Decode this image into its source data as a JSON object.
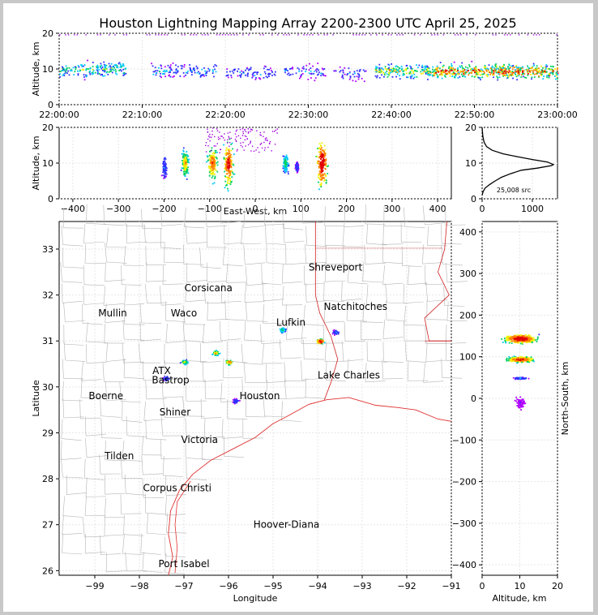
{
  "title": "Houston Lightning Mapping Array 2200-2300 UTC April 25, 2025",
  "colors": {
    "map_coast": "#e03030",
    "county_lines": "#b4b4b4",
    "state_lines": "#d02020",
    "grid": "#e6e6e6"
  },
  "chart_data": [
    {
      "id": "time-altitude",
      "type": "scatter",
      "xlabel": "",
      "ylabel": "Altitude, km",
      "xlim": [
        "22:00:00",
        "23:00:00"
      ],
      "ylim": [
        0,
        20
      ],
      "x_ticks": [
        "22:00:00",
        "22:10:00",
        "22:20:00",
        "22:30:00",
        "22:40:00",
        "22:50:00",
        "23:00:00"
      ],
      "y_ticks": [
        "0",
        "10",
        "20"
      ],
      "bursts": [
        {
          "t_start_min": 0,
          "t_end_min": 8,
          "alt_km": 10,
          "intensity": 0.6
        },
        {
          "t_start_min": 11,
          "t_end_min": 19,
          "alt_km": 9.5,
          "intensity": 0.4
        },
        {
          "t_start_min": 20,
          "t_end_min": 26,
          "alt_km": 9,
          "intensity": 0.35
        },
        {
          "t_start_min": 27,
          "t_end_min": 32,
          "alt_km": 9.5,
          "intensity": 0.35
        },
        {
          "t_start_min": 33,
          "t_end_min": 37,
          "alt_km": 9,
          "intensity": 0.3
        },
        {
          "t_start_min": 38,
          "t_end_min": 45,
          "alt_km": 9.5,
          "intensity": 0.75
        },
        {
          "t_start_min": 45,
          "t_end_min": 60,
          "alt_km": 9.5,
          "intensity": 1.0
        }
      ]
    },
    {
      "id": "east-west-altitude",
      "type": "scatter",
      "xlabel": "East-West, km",
      "ylabel": "Altitude, km",
      "xlim": [
        -430,
        430
      ],
      "ylim": [
        0,
        20
      ],
      "x_ticks": [
        "−400",
        "−300",
        "−200",
        "−100",
        "0",
        "100",
        "200",
        "300",
        "400"
      ],
      "y_ticks": [
        "0",
        "10",
        "20"
      ],
      "clusters": [
        {
          "x_km": -200,
          "alt_km": 9,
          "width_km": 8,
          "height_km": 6,
          "intensity": 0.3
        },
        {
          "x_km": -155,
          "alt_km": 10,
          "width_km": 12,
          "height_km": 8,
          "intensity": 0.7
        },
        {
          "x_km": -95,
          "alt_km": 10,
          "width_km": 18,
          "height_km": 10,
          "intensity": 0.8
        },
        {
          "x_km": -60,
          "alt_km": 10,
          "width_km": 16,
          "height_km": 14,
          "intensity": 0.9
        },
        {
          "x_km": 65,
          "alt_km": 10,
          "width_km": 10,
          "height_km": 6,
          "intensity": 0.5
        },
        {
          "x_km": 90,
          "alt_km": 9,
          "width_km": 6,
          "height_km": 3,
          "intensity": 0.25
        },
        {
          "x_km": 145,
          "alt_km": 10,
          "width_km": 18,
          "height_km": 14,
          "intensity": 1.0
        }
      ]
    },
    {
      "id": "altitude-histogram",
      "type": "line",
      "xlim": [
        0,
        1500
      ],
      "ylim": [
        0,
        20
      ],
      "x_ticks": [
        "0",
        "1000"
      ],
      "y_ticks": [
        "0",
        "10",
        "20"
      ],
      "annotation": "25,008 src",
      "points": [
        [
          0,
          1
        ],
        [
          20,
          2
        ],
        [
          60,
          3
        ],
        [
          150,
          4
        ],
        [
          260,
          5
        ],
        [
          380,
          6
        ],
        [
          560,
          7
        ],
        [
          780,
          8
        ],
        [
          1100,
          8.6
        ],
        [
          1380,
          9.3
        ],
        [
          1420,
          9.6
        ],
        [
          1300,
          10.3
        ],
        [
          1000,
          11
        ],
        [
          700,
          11.8
        ],
        [
          420,
          12.6
        ],
        [
          200,
          13.6
        ],
        [
          90,
          14.6
        ],
        [
          40,
          15.8
        ],
        [
          15,
          17.5
        ],
        [
          5,
          19
        ],
        [
          0,
          20
        ]
      ]
    },
    {
      "id": "lat-lon-map",
      "type": "scatter",
      "xlabel": "Longitude",
      "ylabel": "Latitude",
      "xlim": [
        -99.8,
        -91
      ],
      "ylim": [
        25.9,
        33.6
      ],
      "x_ticks": [
        "−99",
        "−98",
        "−97",
        "−96",
        "−95",
        "−94",
        "−93",
        "−92",
        "−91"
      ],
      "y_ticks": [
        "26",
        "27",
        "28",
        "29",
        "30",
        "31",
        "32",
        "33"
      ],
      "cities": [
        {
          "name": "Shreveport",
          "lon": -93.6,
          "lat": 32.6,
          "color": "#000000"
        },
        {
          "name": "Corsicana",
          "lon": -96.45,
          "lat": 32.15,
          "color": "#000000"
        },
        {
          "name": "Mullin",
          "lon": -98.6,
          "lat": 31.6,
          "color": "#f08c3c"
        },
        {
          "name": "Waco",
          "lon": -97.0,
          "lat": 31.6,
          "color": "#000000"
        },
        {
          "name": "Natchitoches",
          "lon": -93.15,
          "lat": 31.75,
          "color": "#000000"
        },
        {
          "name": "Lufkin",
          "lon": -94.6,
          "lat": 31.4,
          "color": "#000000"
        },
        {
          "name": "Lake Charles",
          "lon": -93.3,
          "lat": 30.25,
          "color": "#000000"
        },
        {
          "name": "Bastrop",
          "lon": -97.3,
          "lat": 30.15,
          "color": "#000000"
        },
        {
          "name": "ATX",
          "lon": -97.5,
          "lat": 30.35,
          "color": "#f08c3c"
        },
        {
          "name": "Boerne",
          "lon": -98.75,
          "lat": 29.8,
          "color": "#000000"
        },
        {
          "name": "Houston",
          "lon": -95.3,
          "lat": 29.8,
          "color": "#e6b800"
        },
        {
          "name": "Shiner",
          "lon": -97.2,
          "lat": 29.45,
          "color": "#000000"
        },
        {
          "name": "Victoria",
          "lon": -96.65,
          "lat": 28.85,
          "color": "#000000"
        },
        {
          "name": "Tilden",
          "lon": -98.45,
          "lat": 28.5,
          "color": "#000000"
        },
        {
          "name": "Corpus Christi",
          "lon": -97.15,
          "lat": 27.8,
          "color": "#000000"
        },
        {
          "name": "Hoover-Diana",
          "lon": -94.7,
          "lat": 27.0,
          "color": "#1010e0"
        },
        {
          "name": "Port Isabel",
          "lon": -97.0,
          "lat": 26.15,
          "color": "#000000"
        }
      ],
      "clusters": [
        {
          "lon": -97.0,
          "lat": 30.55,
          "intensity": 0.6
        },
        {
          "lon": -97.4,
          "lat": 30.2,
          "intensity": 0.3
        },
        {
          "lon": -96.3,
          "lat": 30.75,
          "intensity": 0.7
        },
        {
          "lon": -96.0,
          "lat": 30.55,
          "intensity": 0.8
        },
        {
          "lon": -94.8,
          "lat": 31.25,
          "intensity": 0.5
        },
        {
          "lon": -93.95,
          "lat": 31.0,
          "intensity": 1.0
        },
        {
          "lon": -93.6,
          "lat": 31.2,
          "intensity": 0.3
        },
        {
          "lon": -95.85,
          "lat": 29.7,
          "intensity": 0.25
        }
      ]
    },
    {
      "id": "altitude-north-south",
      "type": "scatter",
      "xlabel": "Altitude, km",
      "ylabel": "North-South, km",
      "xlim": [
        0,
        20
      ],
      "ylim": [
        -425,
        425
      ],
      "x_ticks": [
        "0",
        "10",
        "20"
      ],
      "y_ticks": [
        "−400",
        "−300",
        "−200",
        "−100",
        "0",
        "100",
        "200",
        "300",
        "400"
      ],
      "clusters": [
        {
          "alt_km": 10,
          "ns_km": 145,
          "width_km": 16,
          "height_km": 30,
          "intensity": 1.0
        },
        {
          "alt_km": 10,
          "ns_km": 95,
          "width_km": 14,
          "height_km": 20,
          "intensity": 0.9
        },
        {
          "alt_km": 10,
          "ns_km": 50,
          "width_km": 6,
          "height_km": 6,
          "intensity": 0.3
        },
        {
          "alt_km": 10,
          "ns_km": -10,
          "width_km": 6,
          "height_km": 40,
          "intensity": 0.15
        }
      ]
    }
  ]
}
